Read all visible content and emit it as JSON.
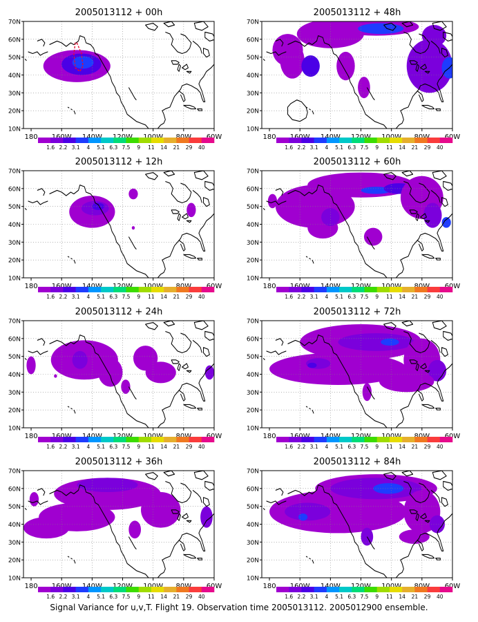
{
  "panels": [
    {
      "title": "2005013112 + 00h",
      "blobs": [
        {
          "cx": 150,
          "cy": 45,
          "rx": 22,
          "ry": 9,
          "level": 0
        },
        {
          "cx": 147,
          "cy": 46,
          "rx": 13,
          "ry": 6,
          "level": 2
        },
        {
          "cx": 146,
          "cy": 47,
          "rx": 7,
          "ry": 3.5,
          "level": 3
        }
      ],
      "contour": [
        [
          150,
          58
        ],
        [
          147,
          52
        ],
        [
          146,
          45
        ],
        [
          148,
          42
        ],
        [
          151,
          44
        ],
        [
          152,
          52
        ],
        [
          151,
          58
        ]
      ]
    },
    {
      "title": "2005013112 + 48h",
      "blobs": [
        {
          "cx": 140,
          "cy": 63,
          "rx": 22,
          "ry": 8,
          "level": 0
        },
        {
          "cx": 110,
          "cy": 67,
          "rx": 28,
          "ry": 5,
          "level": 0
        },
        {
          "cx": 107,
          "cy": 66,
          "rx": 15,
          "ry": 3,
          "level": 3
        },
        {
          "cx": 168,
          "cy": 54,
          "rx": 10,
          "ry": 9,
          "level": 0
        },
        {
          "cx": 165,
          "cy": 48,
          "rx": 8,
          "ry": 10,
          "level": 0
        },
        {
          "cx": 153,
          "cy": 45,
          "rx": 6,
          "ry": 6,
          "level": 2
        },
        {
          "cx": 130,
          "cy": 45,
          "rx": 6,
          "ry": 8,
          "level": 0
        },
        {
          "cx": 118,
          "cy": 33,
          "rx": 4,
          "ry": 6,
          "level": 0
        },
        {
          "cx": 75,
          "cy": 45,
          "rx": 15,
          "ry": 15,
          "level": 1
        },
        {
          "cx": 62,
          "cy": 44,
          "rx": 5,
          "ry": 6,
          "level": 3
        },
        {
          "cx": 72,
          "cy": 62,
          "rx": 8,
          "ry": 6,
          "level": 1
        }
      ],
      "contour": [
        [
          166,
          24
        ],
        [
          162,
          26
        ],
        [
          159,
          25
        ],
        [
          156,
          22
        ],
        [
          155,
          19
        ],
        [
          156,
          16
        ],
        [
          160,
          14
        ],
        [
          165,
          15
        ],
        [
          168,
          18
        ],
        [
          168,
          22
        ]
      ]
    },
    {
      "title": "2005013112 + 12h",
      "blobs": [
        {
          "cx": 140,
          "cy": 47,
          "rx": 15,
          "ry": 9,
          "level": 0
        },
        {
          "cx": 138,
          "cy": 49,
          "rx": 9,
          "ry": 4,
          "level": 1
        },
        {
          "cx": 136,
          "cy": 50,
          "rx": 4,
          "ry": 2,
          "level": 2
        },
        {
          "cx": 113,
          "cy": 57,
          "rx": 3,
          "ry": 3,
          "level": 0
        },
        {
          "cx": 75,
          "cy": 48,
          "rx": 3,
          "ry": 4,
          "level": 0
        },
        {
          "cx": 113,
          "cy": 38,
          "rx": 1,
          "ry": 1,
          "level": 0
        }
      ]
    },
    {
      "title": "2005013112 + 60h",
      "blobs": [
        {
          "cx": 150,
          "cy": 50,
          "rx": 26,
          "ry": 12,
          "level": 0
        },
        {
          "cx": 145,
          "cy": 38,
          "rx": 10,
          "ry": 6,
          "level": 0
        },
        {
          "cx": 120,
          "cy": 62,
          "rx": 35,
          "ry": 7,
          "level": 0
        },
        {
          "cx": 110,
          "cy": 59,
          "rx": 10,
          "ry": 2,
          "level": 3
        },
        {
          "cx": 95,
          "cy": 60,
          "rx": 10,
          "ry": 3,
          "level": 2
        },
        {
          "cx": 80,
          "cy": 55,
          "rx": 14,
          "ry": 12,
          "level": 0
        },
        {
          "cx": 73,
          "cy": 45,
          "rx": 6,
          "ry": 7,
          "level": 1
        },
        {
          "cx": 64,
          "cy": 41,
          "rx": 3,
          "ry": 3,
          "level": 3
        },
        {
          "cx": 112,
          "cy": 33,
          "rx": 6,
          "ry": 5,
          "level": 0
        },
        {
          "cx": 140,
          "cy": 44,
          "rx": 6,
          "ry": 5,
          "level": 1
        },
        {
          "cx": 178,
          "cy": 53,
          "rx": 3,
          "ry": 4,
          "level": 0
        }
      ]
    },
    {
      "title": "2005013112 + 24h",
      "blobs": [
        {
          "cx": 145,
          "cy": 48,
          "rx": 22,
          "ry": 11,
          "level": 0
        },
        {
          "cx": 148,
          "cy": 48,
          "rx": 5,
          "ry": 5,
          "level": 1
        },
        {
          "cx": 128,
          "cy": 41,
          "rx": 8,
          "ry": 8,
          "level": 0
        },
        {
          "cx": 118,
          "cy": 33,
          "rx": 3,
          "ry": 4,
          "level": 0
        },
        {
          "cx": 105,
          "cy": 49,
          "rx": 8,
          "ry": 7,
          "level": 0
        },
        {
          "cx": 95,
          "cy": 41,
          "rx": 10,
          "ry": 6,
          "level": 0
        },
        {
          "cx": 63,
          "cy": 41,
          "rx": 3,
          "ry": 4,
          "level": 1
        },
        {
          "cx": 180,
          "cy": 45,
          "rx": 3,
          "ry": 5,
          "level": 0
        },
        {
          "cx": 164,
          "cy": 39,
          "rx": 1,
          "ry": 1,
          "level": 0
        }
      ]
    },
    {
      "title": "2005013112 + 72h",
      "blobs": [
        {
          "cx": 120,
          "cy": 58,
          "rx": 40,
          "ry": 10,
          "level": 0
        },
        {
          "cx": 135,
          "cy": 43,
          "rx": 45,
          "ry": 9,
          "level": 0
        },
        {
          "cx": 110,
          "cy": 58,
          "rx": 25,
          "ry": 5,
          "level": 1
        },
        {
          "cx": 101,
          "cy": 58,
          "rx": 6,
          "ry": 2,
          "level": 3
        },
        {
          "cx": 148,
          "cy": 46,
          "rx": 8,
          "ry": 3,
          "level": 1
        },
        {
          "cx": 152,
          "cy": 45,
          "rx": 3,
          "ry": 1.5,
          "level": 2
        },
        {
          "cx": 80,
          "cy": 48,
          "rx": 12,
          "ry": 12,
          "level": 0
        },
        {
          "cx": 70,
          "cy": 42,
          "rx": 6,
          "ry": 6,
          "level": 1
        },
        {
          "cx": 90,
          "cy": 36,
          "rx": 18,
          "ry": 6,
          "level": 0
        },
        {
          "cx": 116,
          "cy": 30,
          "rx": 3,
          "ry": 5,
          "level": 0
        }
      ]
    },
    {
      "title": "2005013112 + 36h",
      "blobs": [
        {
          "cx": 130,
          "cy": 57,
          "rx": 35,
          "ry": 9,
          "level": 0
        },
        {
          "cx": 130,
          "cy": 62,
          "rx": 20,
          "ry": 4,
          "level": 1
        },
        {
          "cx": 150,
          "cy": 44,
          "rx": 25,
          "ry": 8,
          "level": 0
        },
        {
          "cx": 170,
          "cy": 38,
          "rx": 15,
          "ry": 6,
          "level": 0
        },
        {
          "cx": 112,
          "cy": 37,
          "rx": 4,
          "ry": 5,
          "level": 0
        },
        {
          "cx": 95,
          "cy": 48,
          "rx": 13,
          "ry": 10,
          "level": 0
        },
        {
          "cx": 65,
          "cy": 44,
          "rx": 4,
          "ry": 6,
          "level": 1
        },
        {
          "cx": 178,
          "cy": 54,
          "rx": 3,
          "ry": 4,
          "level": 0
        }
      ]
    },
    {
      "title": "2005013112 + 84h",
      "blobs": [
        {
          "cx": 135,
          "cy": 47,
          "rx": 45,
          "ry": 12,
          "level": 0
        },
        {
          "cx": 110,
          "cy": 60,
          "rx": 40,
          "ry": 8,
          "level": 0
        },
        {
          "cx": 110,
          "cy": 60,
          "rx": 30,
          "ry": 6,
          "level": 1
        },
        {
          "cx": 102,
          "cy": 60,
          "rx": 10,
          "ry": 3,
          "level": 3
        },
        {
          "cx": 155,
          "cy": 47,
          "rx": 15,
          "ry": 5,
          "level": 1
        },
        {
          "cx": 158,
          "cy": 44,
          "rx": 3,
          "ry": 2,
          "level": 3
        },
        {
          "cx": 80,
          "cy": 47,
          "rx": 12,
          "ry": 12,
          "level": 0
        },
        {
          "cx": 70,
          "cy": 40,
          "rx": 5,
          "ry": 5,
          "level": 1
        },
        {
          "cx": 116,
          "cy": 33,
          "rx": 4,
          "ry": 5,
          "level": 1
        },
        {
          "cx": 85,
          "cy": 33,
          "rx": 10,
          "ry": 4,
          "level": 0
        }
      ]
    }
  ],
  "axes": {
    "x_ticks": [
      "180",
      "160W",
      "140W",
      "120W",
      "100W",
      "80W",
      "60W"
    ],
    "y_ticks": [
      "10N",
      "20N",
      "30N",
      "40N",
      "50N",
      "60N",
      "70N"
    ],
    "lon_range_west": [
      185,
      60
    ],
    "lat_range": [
      10,
      70
    ]
  },
  "colorbar": {
    "labels": [
      "1.6",
      "2.2",
      "3.1",
      "4",
      "5.1",
      "6.3",
      "7.5",
      "9",
      "11",
      "14",
      "21",
      "29",
      "40"
    ],
    "colors": [
      "#a000d0",
      "#7b00dc",
      "#4b00e6",
      "#1e3cff",
      "#0096ff",
      "#00c8c8",
      "#00dc78",
      "#3cdc00",
      "#a0dc00",
      "#e6dc00",
      "#e6af2d",
      "#f07820",
      "#fa3c3c",
      "#e60a8c"
    ]
  },
  "map": {
    "ocean_color": "#ffffff",
    "coastline_color": "#000000",
    "grid_color": "#808080"
  },
  "caption": "Signal Variance for u,v,T. Flight 19. Observation time 2005013112. 2005012900 ensemble."
}
